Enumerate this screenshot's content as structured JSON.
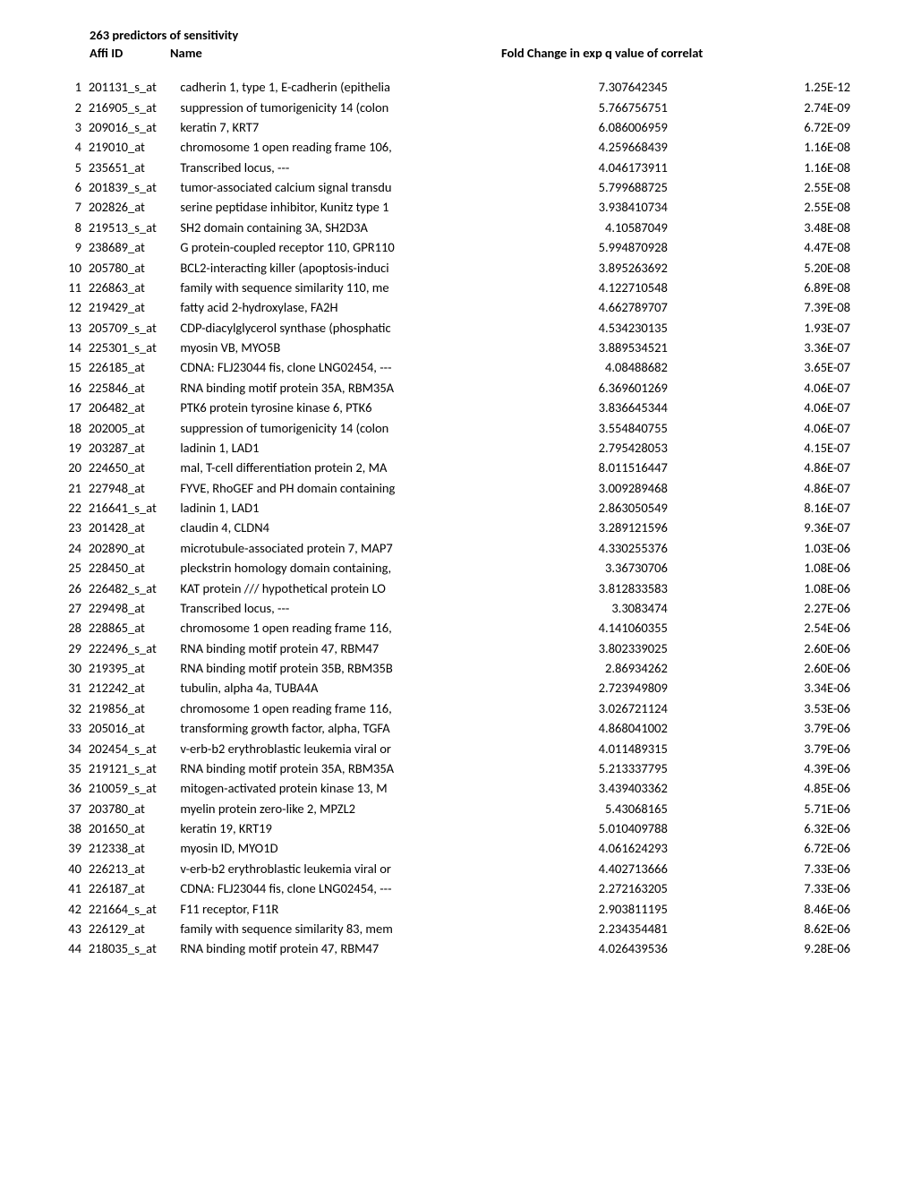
{
  "header": {
    "title": "263 predictors of sensitivity",
    "affi": "Affi ID",
    "name": "Name",
    "fold": "Fold Change in exp q value of correlat"
  },
  "rows": [
    {
      "idx": "1",
      "affi": "201131_s_at",
      "name": "cadherin 1, type 1, E-cadherin (epithelia",
      "fold": "7.307642345",
      "q": "1.25E-12"
    },
    {
      "idx": "2",
      "affi": "216905_s_at",
      "name": "suppression of tumorigenicity 14 (colon",
      "fold": "5.766756751",
      "q": "2.74E-09"
    },
    {
      "idx": "3",
      "affi": "209016_s_at",
      "name": "keratin 7, KRT7",
      "fold": "6.086006959",
      "q": "6.72E-09"
    },
    {
      "idx": "4",
      "affi": "219010_at",
      "name": "chromosome 1 open reading frame 106,",
      "fold": "4.259668439",
      "q": "1.16E-08"
    },
    {
      "idx": "5",
      "affi": "235651_at",
      "name": "Transcribed locus, ---",
      "fold": "4.046173911",
      "q": "1.16E-08"
    },
    {
      "idx": "6",
      "affi": "201839_s_at",
      "name": "tumor-associated calcium signal transdu",
      "fold": "5.799688725",
      "q": "2.55E-08"
    },
    {
      "idx": "7",
      "affi": "202826_at",
      "name": "serine peptidase inhibitor, Kunitz type 1",
      "fold": "3.938410734",
      "q": "2.55E-08"
    },
    {
      "idx": "8",
      "affi": "219513_s_at",
      "name": "SH2 domain containing 3A, SH2D3A",
      "fold": "4.10587049",
      "q": "3.48E-08"
    },
    {
      "idx": "9",
      "affi": "238689_at",
      "name": "G protein-coupled receptor 110, GPR110",
      "fold": "5.994870928",
      "q": "4.47E-08"
    },
    {
      "idx": "10",
      "affi": "205780_at",
      "name": "BCL2-interacting killer (apoptosis-induci",
      "fold": "3.895263692",
      "q": "5.20E-08"
    },
    {
      "idx": "11",
      "affi": "226863_at",
      "name": "family with sequence similarity 110, me",
      "fold": "4.122710548",
      "q": "6.89E-08"
    },
    {
      "idx": "12",
      "affi": "219429_at",
      "name": "fatty acid 2-hydroxylase, FA2H",
      "fold": "4.662789707",
      "q": "7.39E-08"
    },
    {
      "idx": "13",
      "affi": "205709_s_at",
      "name": "CDP-diacylglycerol synthase (phosphatic",
      "fold": "4.534230135",
      "q": "1.93E-07"
    },
    {
      "idx": "14",
      "affi": "225301_s_at",
      "name": "myosin VB, MYO5B",
      "fold": "3.889534521",
      "q": "3.36E-07"
    },
    {
      "idx": "15",
      "affi": "226185_at",
      "name": "CDNA: FLJ23044 fis, clone LNG02454, ---",
      "fold": "4.08488682",
      "q": "3.65E-07"
    },
    {
      "idx": "16",
      "affi": "225846_at",
      "name": "RNA binding motif protein 35A, RBM35A",
      "fold": "6.369601269",
      "q": "4.06E-07"
    },
    {
      "idx": "17",
      "affi": "206482_at",
      "name": "PTK6 protein tyrosine kinase 6, PTK6",
      "fold": "3.836645344",
      "q": "4.06E-07"
    },
    {
      "idx": "18",
      "affi": "202005_at",
      "name": "suppression of tumorigenicity 14 (colon",
      "fold": "3.554840755",
      "q": "4.06E-07"
    },
    {
      "idx": "19",
      "affi": "203287_at",
      "name": "ladinin 1, LAD1",
      "fold": "2.795428053",
      "q": "4.15E-07"
    },
    {
      "idx": "20",
      "affi": "224650_at",
      "name": "mal, T-cell differentiation protein 2, MA",
      "fold": "8.011516447",
      "q": "4.86E-07"
    },
    {
      "idx": "21",
      "affi": "227948_at",
      "name": "FYVE, RhoGEF and PH domain containing",
      "fold": "3.009289468",
      "q": "4.86E-07"
    },
    {
      "idx": "22",
      "affi": "216641_s_at",
      "name": "ladinin 1, LAD1",
      "fold": "2.863050549",
      "q": "8.16E-07"
    },
    {
      "idx": "23",
      "affi": "201428_at",
      "name": "claudin 4, CLDN4",
      "fold": "3.289121596",
      "q": "9.36E-07"
    },
    {
      "idx": "24",
      "affi": "202890_at",
      "name": "microtubule-associated protein 7, MAP7",
      "fold": "4.330255376",
      "q": "1.03E-06"
    },
    {
      "idx": "25",
      "affi": "228450_at",
      "name": "pleckstrin homology domain containing,",
      "fold": "3.36730706",
      "q": "1.08E-06"
    },
    {
      "idx": "26",
      "affi": "226482_s_at",
      "name": "KAT protein /// hypothetical protein LO",
      "fold": "3.812833583",
      "q": "1.08E-06"
    },
    {
      "idx": "27",
      "affi": "229498_at",
      "name": "Transcribed locus, ---",
      "fold": "3.3083474",
      "q": "2.27E-06"
    },
    {
      "idx": "28",
      "affi": "228865_at",
      "name": "chromosome 1 open reading frame 116,",
      "fold": "4.141060355",
      "q": "2.54E-06"
    },
    {
      "idx": "29",
      "affi": "222496_s_at",
      "name": "RNA binding motif protein 47, RBM47",
      "fold": "3.802339025",
      "q": "2.60E-06"
    },
    {
      "idx": "30",
      "affi": "219395_at",
      "name": "RNA binding motif protein 35B, RBM35B",
      "fold": "2.86934262",
      "q": "2.60E-06"
    },
    {
      "idx": "31",
      "affi": "212242_at",
      "name": "tubulin, alpha 4a, TUBA4A",
      "fold": "2.723949809",
      "q": "3.34E-06"
    },
    {
      "idx": "32",
      "affi": "219856_at",
      "name": "chromosome 1 open reading frame 116,",
      "fold": "3.026721124",
      "q": "3.53E-06"
    },
    {
      "idx": "33",
      "affi": "205016_at",
      "name": "transforming growth factor, alpha, TGFA",
      "fold": "4.868041002",
      "q": "3.79E-06"
    },
    {
      "idx": "34",
      "affi": "202454_s_at",
      "name": "v-erb-b2 erythroblastic leukemia viral or",
      "fold": "4.011489315",
      "q": "3.79E-06"
    },
    {
      "idx": "35",
      "affi": "219121_s_at",
      "name": "RNA binding motif protein 35A, RBM35A",
      "fold": "5.213337795",
      "q": "4.39E-06"
    },
    {
      "idx": "36",
      "affi": "210059_s_at",
      "name": "mitogen-activated protein kinase 13, M",
      "fold": "3.439403362",
      "q": "4.85E-06"
    },
    {
      "idx": "37",
      "affi": "203780_at",
      "name": "myelin protein zero-like 2, MPZL2",
      "fold": "5.43068165",
      "q": "5.71E-06"
    },
    {
      "idx": "38",
      "affi": "201650_at",
      "name": "keratin 19, KRT19",
      "fold": "5.010409788",
      "q": "6.32E-06"
    },
    {
      "idx": "39",
      "affi": "212338_at",
      "name": "myosin ID, MYO1D",
      "fold": "4.061624293",
      "q": "6.72E-06"
    },
    {
      "idx": "40",
      "affi": "226213_at",
      "name": "v-erb-b2 erythroblastic leukemia viral or",
      "fold": "4.402713666",
      "q": "7.33E-06"
    },
    {
      "idx": "41",
      "affi": "226187_at",
      "name": "CDNA: FLJ23044 fis, clone LNG02454, ---",
      "fold": "2.272163205",
      "q": "7.33E-06"
    },
    {
      "idx": "42",
      "affi": "221664_s_at",
      "name": "F11 receptor, F11R",
      "fold": "2.903811195",
      "q": "8.46E-06"
    },
    {
      "idx": "43",
      "affi": "226129_at",
      "name": "family with sequence similarity 83, mem",
      "fold": "2.234354481",
      "q": "8.62E-06"
    },
    {
      "idx": "44",
      "affi": "218035_s_at",
      "name": "RNA binding motif protein 47, RBM47",
      "fold": "4.026439536",
      "q": "9.28E-06"
    }
  ]
}
